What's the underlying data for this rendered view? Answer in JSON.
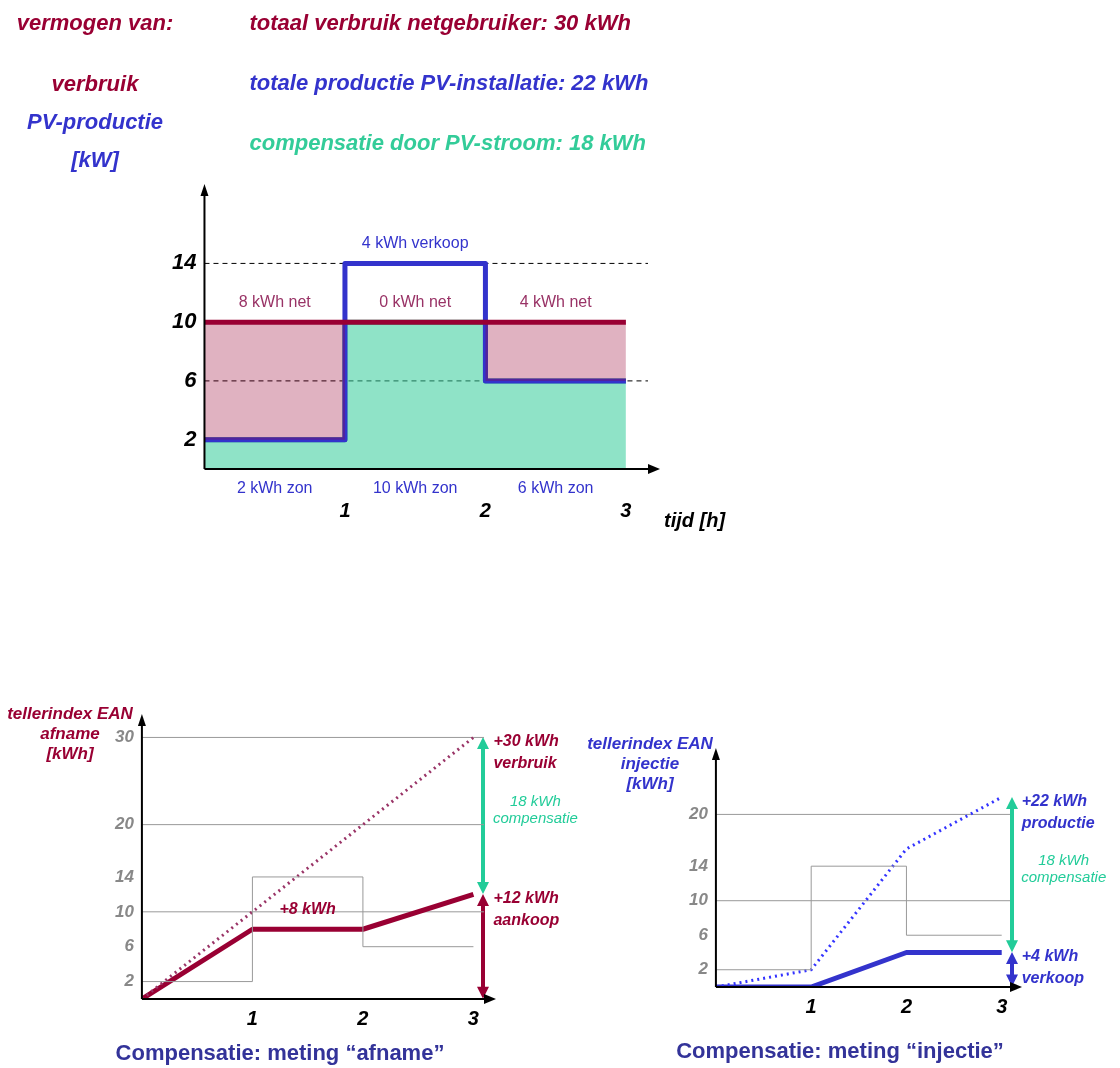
{
  "chart_data": [
    {
      "type": "step",
      "legend": "top",
      "ylabel": "vermogen van:\nverbruik\nPV-productie\n[kW]",
      "xlabel": "tijd [h]",
      "x": [
        0,
        1,
        2,
        3
      ],
      "grid": false,
      "marker": "none",
      "series": [
        {
          "name": "totaal verbruik netgebruiker: 30 kWh",
          "type": "area",
          "color": "#990033",
          "values": [
            10,
            10,
            10,
            10
          ]
        },
        {
          "name": "totale productie PV-installatie: 22 kWh",
          "type": "step",
          "color": "#3333cc",
          "values": [
            2,
            14,
            6,
            6
          ]
        },
        {
          "name": "compensatie door PV-stroom: 18 kWh",
          "type": "area",
          "color": "#33cc99",
          "values": [
            2,
            10,
            6,
            6
          ]
        }
      ],
      "xlim": [
        0,
        3.2
      ],
      "xticks": [
        1,
        2,
        3
      ],
      "ylim": [
        0,
        19
      ],
      "yticks": [
        2,
        6,
        10,
        14
      ],
      "ref_lines": [
        {
          "axis": "y",
          "value": 14,
          "line_style": "dashed",
          "color": "#000000"
        },
        {
          "axis": "y",
          "value": 6,
          "line_style": "dashed",
          "color": "#000000"
        }
      ],
      "annotations": [
        {
          "text": "8 kWh net",
          "x": 0.5,
          "y": 10
        },
        {
          "text": "0 kWh net",
          "x": 1.5,
          "y": 10
        },
        {
          "text": "4 kWh net",
          "x": 2.5,
          "y": 10
        },
        {
          "text": "4 kWh verkoop",
          "x": 1.5,
          "y": 14
        },
        {
          "text": "2 kWh zon",
          "x": 0.5,
          "y": 0
        },
        {
          "text": "10 kWh zon",
          "x": 1.5,
          "y": 0
        },
        {
          "text": "6 kWh zon",
          "x": 2.5,
          "y": 0
        }
      ]
    },
    {
      "type": "line",
      "title": "Compensatie: meting “afname”",
      "ylabel": "tellerindex EAN\nafname\n[kWh]",
      "x": [
        0,
        1,
        2,
        3
      ],
      "grid": false,
      "marker": "none",
      "series": [
        {
          "type": "step",
          "color": "#999999",
          "values": [
            2,
            14,
            6,
            6
          ]
        },
        {
          "color": "#993366",
          "line_style": "dotted",
          "values": [
            0,
            10,
            20,
            30
          ]
        },
        {
          "color": "#990033",
          "values": [
            0,
            8,
            8,
            12
          ]
        }
      ],
      "xlim": [
        0,
        3.15
      ],
      "xticks": [
        1,
        2,
        3
      ],
      "ylim": [
        0,
        32
      ],
      "yticks": [
        2,
        6,
        10,
        14,
        20,
        30
      ],
      "ref_lines": [
        {
          "axis": "y",
          "value": 10,
          "color": "#999999"
        },
        {
          "axis": "y",
          "value": 20,
          "color": "#999999"
        },
        {
          "axis": "y",
          "value": 30,
          "color": "#999999"
        }
      ],
      "annotations": [
        {
          "text": "+30 kWh\nverbruik",
          "x": 3,
          "y": 30
        },
        "18 kWh\ncompensatie",
        {
          "text": "+12 kWh\naankoop",
          "x": 3,
          "y": 12
        },
        {
          "text": "+8 kWh",
          "x": 1.5,
          "y": 8
        }
      ]
    },
    {
      "type": "line",
      "title": "Compensatie: meting “injectie”",
      "ylabel": "tellerindex EAN\ninjectie\n[kWh]",
      "x": [
        0,
        1,
        2,
        3
      ],
      "grid": false,
      "marker": "none",
      "series": [
        {
          "type": "step",
          "color": "#999999",
          "values": [
            2,
            14,
            6,
            6
          ]
        },
        {
          "color": "#3333ff",
          "line_style": "dotted",
          "values": [
            0,
            2,
            16,
            22
          ]
        },
        {
          "color": "#3333cc",
          "values": [
            0,
            0,
            4,
            4
          ]
        }
      ],
      "xlim": [
        0,
        3.15
      ],
      "xticks": [
        1,
        2,
        3
      ],
      "ylim": [
        0,
        27
      ],
      "yticks": [
        2,
        6,
        10,
        14,
        20
      ],
      "ref_lines": [
        {
          "axis": "y",
          "value": 10,
          "color": "#999999"
        },
        {
          "axis": "y",
          "value": 20,
          "color": "#999999"
        }
      ],
      "annotations": [
        {
          "text": "+22 kWh\nproductie",
          "x": 3,
          "y": 22
        },
        "18 kWh\ncompensatie",
        {
          "text": "+4 kWh\nverkoop",
          "x": 3,
          "y": 4
        }
      ]
    }
  ]
}
